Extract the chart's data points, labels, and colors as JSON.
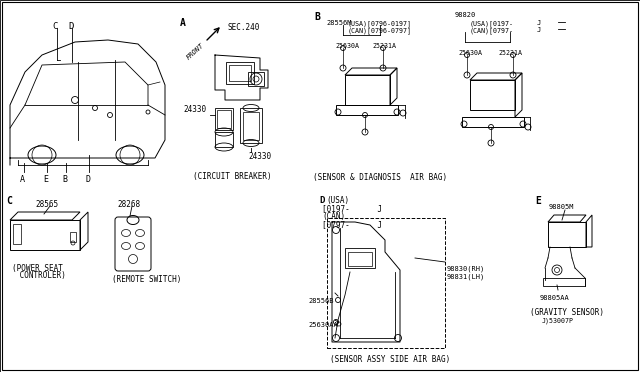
{
  "bg_color": "#ffffff",
  "line_color": "#000000",
  "fig_width": 6.4,
  "fig_height": 3.72,
  "dpi": 100,
  "texts": {
    "A": "A",
    "B": "B",
    "C": "C",
    "D": "D",
    "E": "E",
    "sec240": "SEC.240",
    "front": "FRONT",
    "24330a": "24330",
    "24330b": "24330",
    "circuit_breaker": "(CIRCUIT BREAKER)",
    "28556M": "28556M",
    "usa_b1": "(USA)[0796-0197]",
    "can_b1": "(CAN)[0796-0797]",
    "25630A_1": "25630A",
    "25231A_1": "25231A",
    "98820": "98820",
    "usa_b2": "(USA)[0197-",
    "can_b2": "(CAN)[0797-",
    "25630A_2": "25630A",
    "25231A_2": "25231A",
    "bracket_right1": "J",
    "bracket_right2": "J",
    "sensor_diag": "(SENSOR & DIAGNOSIS  AIR BAG)",
    "28565": "28565",
    "power_seat1": "(POWER SEAT",
    "power_seat2": " CONTROLER)",
    "28268": "28268",
    "remote_switch": "(REMOTE SWITCH)",
    "d_label": "D",
    "d_usa": "(USA)",
    "d_can_range1": "[0197-      J",
    "d_can": "(CAN)",
    "d_can_range2": "[0797-      J",
    "28556B": "28556B",
    "25630AA": "25630AA",
    "98830rh": "98830(RH)",
    "98831lh": "98831(LH)",
    "sensor_assy": "(SENSOR ASSY SIDE AIR BAG)",
    "E_label": "E",
    "98805M": "98805M",
    "98805AA": "98805AA",
    "gravity": "(GRAVITY SENSOR)",
    "part_code": "J)53007P",
    "car_C": "C",
    "car_D": "D",
    "car_A": "A",
    "car_E": "E",
    "car_B": "B",
    "car_D2": "D"
  }
}
